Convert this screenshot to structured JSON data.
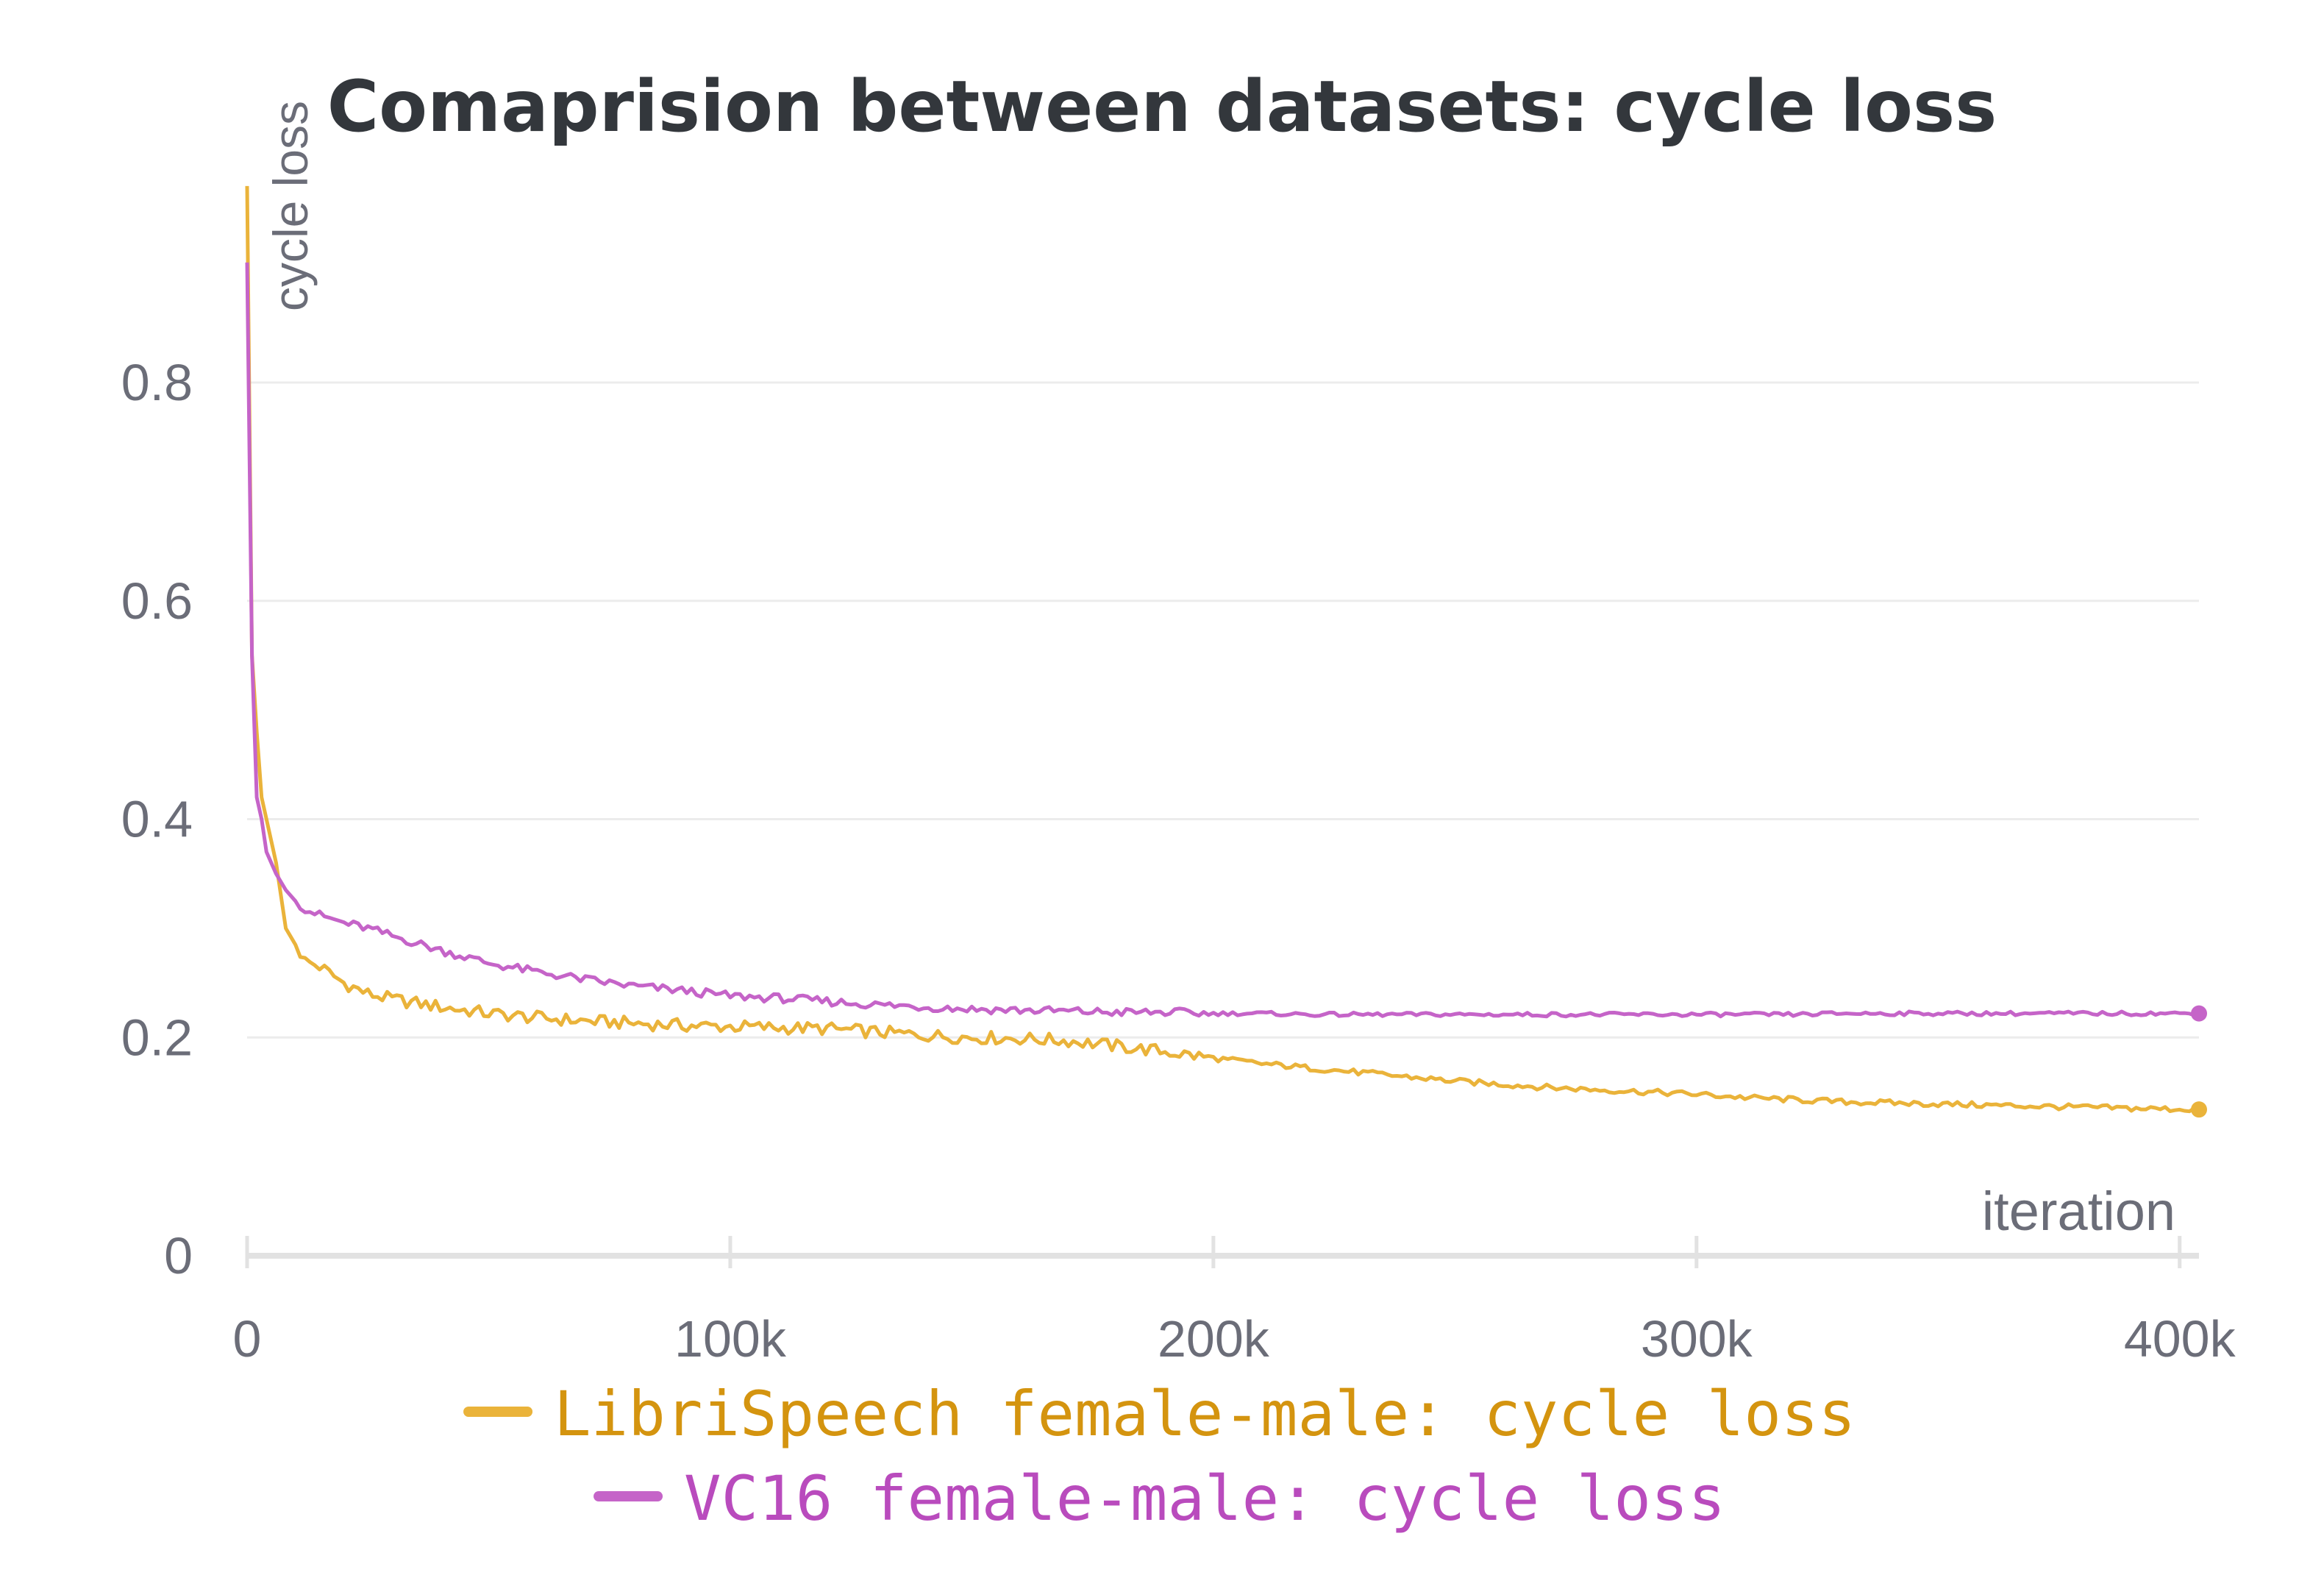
{
  "chart_data": {
    "type": "line",
    "title": "Comaprision between datasets: cycle loss",
    "xlabel": "iteration",
    "ylabel": "cycle loss",
    "xlim": [
      0,
      404000
    ],
    "ylim": [
      0,
      0.98
    ],
    "x_ticks": [
      0,
      100000,
      200000,
      300000,
      400000
    ],
    "x_tick_labels": [
      "0",
      "100k",
      "200k",
      "300k",
      "400k"
    ],
    "y_ticks": [
      0,
      0.2,
      0.4,
      0.6,
      0.8
    ],
    "y_tick_labels": [
      "0",
      "0.2",
      "0.4",
      "0.6",
      "0.8"
    ],
    "grid": "horizontal",
    "legend": "bottom-center",
    "series": [
      {
        "name": "LibriSpeech female-male: cycle loss",
        "color": "#eab33a",
        "legend_text_color": "#d4940f",
        "x": [
          0,
          1000,
          2000,
          3000,
          4000,
          6000,
          8000,
          10000,
          12000,
          15000,
          20000,
          25000,
          30000,
          40000,
          50000,
          60000,
          70000,
          80000,
          90000,
          100000,
          110000,
          120000,
          130000,
          140000,
          150000,
          160000,
          170000,
          180000,
          190000,
          200000,
          210000,
          220000,
          230000,
          240000,
          250000,
          260000,
          270000,
          280000,
          290000,
          300000,
          310000,
          320000,
          330000,
          340000,
          350000,
          360000,
          370000,
          380000,
          390000,
          404000
        ],
        "values": [
          0.98,
          0.55,
          0.48,
          0.42,
          0.4,
          0.36,
          0.3,
          0.285,
          0.27,
          0.265,
          0.25,
          0.24,
          0.235,
          0.228,
          0.222,
          0.218,
          0.215,
          0.213,
          0.211,
          0.21,
          0.209,
          0.208,
          0.205,
          0.202,
          0.2,
          0.199,
          0.197,
          0.192,
          0.187,
          0.181,
          0.176,
          0.172,
          0.168,
          0.164,
          0.16,
          0.157,
          0.154,
          0.152,
          0.15,
          0.148,
          0.145,
          0.143,
          0.141,
          0.14,
          0.139,
          0.138,
          0.137,
          0.136,
          0.135,
          0.134
        ]
      },
      {
        "name": "VC16 female-male: cycle loss",
        "color": "#c564c8",
        "legend_text_color": "#b94bbd",
        "x": [
          0,
          1000,
          2000,
          3000,
          4000,
          6000,
          8000,
          10000,
          12000,
          15000,
          20000,
          25000,
          30000,
          40000,
          50000,
          60000,
          70000,
          80000,
          90000,
          100000,
          110000,
          120000,
          130000,
          140000,
          150000,
          160000,
          170000,
          180000,
          190000,
          200000,
          210000,
          220000,
          230000,
          240000,
          250000,
          260000,
          270000,
          280000,
          290000,
          300000,
          310000,
          320000,
          330000,
          340000,
          350000,
          360000,
          370000,
          380000,
          390000,
          404000
        ],
        "values": [
          0.91,
          0.55,
          0.42,
          0.4,
          0.37,
          0.35,
          0.335,
          0.325,
          0.318,
          0.312,
          0.305,
          0.3,
          0.293,
          0.28,
          0.268,
          0.26,
          0.253,
          0.247,
          0.243,
          0.238,
          0.236,
          0.233,
          0.23,
          0.228,
          0.226,
          0.225,
          0.224,
          0.223,
          0.223,
          0.222,
          0.222,
          0.221,
          0.221,
          0.221,
          0.221,
          0.221,
          0.221,
          0.221,
          0.221,
          0.221,
          0.221,
          0.221,
          0.222,
          0.222,
          0.222,
          0.222,
          0.222,
          0.222,
          0.222,
          0.222
        ]
      }
    ]
  }
}
